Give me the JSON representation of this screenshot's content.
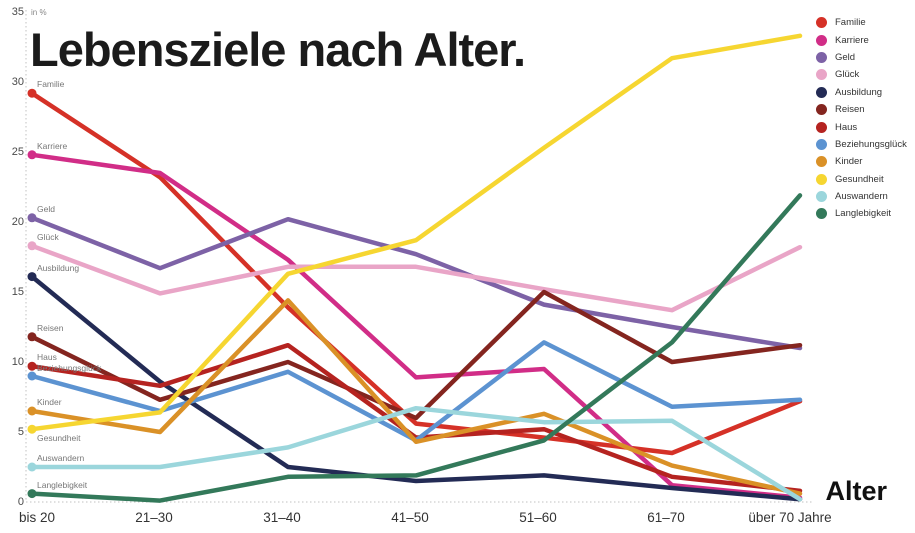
{
  "title": "Lebensziele nach Alter.",
  "axis": {
    "unit_label": "in %",
    "x_title": "Alter",
    "y_ticks": [
      0,
      5,
      10,
      15,
      20,
      25,
      30,
      35
    ]
  },
  "chart_data": {
    "type": "line",
    "title": "Lebensziele nach Alter.",
    "xlabel": "Alter",
    "ylabel": "in %",
    "ylim": [
      0,
      35
    ],
    "grid": false,
    "legend_position": "right",
    "categories": [
      "bis 20",
      "21–30",
      "31–40",
      "41–50",
      "51–60",
      "61–70",
      "über 70 Jahre"
    ],
    "series": [
      {
        "name": "Familie",
        "color": "#d53127",
        "label_dy": -4,
        "values": [
          29.2,
          23.2,
          13.9,
          5.6,
          4.6,
          3.5,
          7.2
        ]
      },
      {
        "name": "Karriere",
        "color": "#d12d87",
        "label_dy": -4,
        "values": [
          24.8,
          23.5,
          17.3,
          8.9,
          9.5,
          1.2,
          0.3
        ]
      },
      {
        "name": "Geld",
        "color": "#7d62a6",
        "label_dy": -4,
        "values": [
          20.3,
          16.7,
          20.2,
          17.7,
          14.1,
          12.5,
          11.0
        ]
      },
      {
        "name": "Glück",
        "color": "#e9a5c7",
        "label_dy": -4,
        "values": [
          18.3,
          14.9,
          16.8,
          16.8,
          15.2,
          13.7,
          18.2
        ]
      },
      {
        "name": "Ausbildung",
        "color": "#232b55",
        "label_dy": -4,
        "values": [
          16.1,
          8.6,
          2.5,
          1.5,
          1.9,
          1.0,
          0.2
        ]
      },
      {
        "name": "Reisen",
        "color": "#84251f",
        "label_dy": -4,
        "values": [
          11.8,
          7.3,
          10.0,
          6.0,
          15.0,
          10.0,
          11.2
        ]
      },
      {
        "name": "Haus",
        "color": "#b52320",
        "label_dy": -4,
        "values": [
          9.7,
          8.3,
          11.2,
          4.6,
          5.2,
          1.8,
          0.8
        ]
      },
      {
        "name": "Beziehungsglück",
        "color": "#5c93d1",
        "label_dy": -3,
        "values": [
          9.0,
          6.5,
          9.3,
          4.4,
          11.4,
          6.8,
          7.3
        ]
      },
      {
        "name": "Kinder",
        "color": "#da9127",
        "label_dy": -4,
        "values": [
          6.5,
          5.0,
          14.4,
          4.3,
          6.3,
          2.6,
          0.6
        ]
      },
      {
        "name": "Gesundheit",
        "color": "#f6d631",
        "label_dy": 14,
        "values": [
          5.2,
          6.4,
          16.3,
          18.7,
          25.3,
          31.7,
          33.3
        ]
      },
      {
        "name": "Auswandern",
        "color": "#9bd6dc",
        "label_dy": -4,
        "values": [
          2.5,
          2.5,
          3.9,
          6.7,
          5.7,
          5.8,
          0.2
        ]
      },
      {
        "name": "Langlebigkeit",
        "color": "#33795a",
        "label_dy": -4,
        "values": [
          0.6,
          0.1,
          1.8,
          1.9,
          4.4,
          11.4,
          21.9
        ]
      }
    ]
  }
}
